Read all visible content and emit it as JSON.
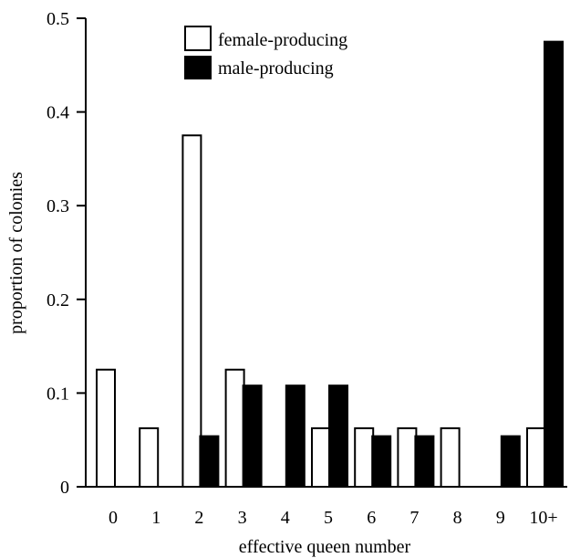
{
  "chart_data": {
    "type": "bar",
    "xlabel": "effective queen number",
    "ylabel": "proportion of colonies",
    "ylim": [
      0,
      0.5
    ],
    "yticks": [
      "0",
      "0.1",
      "0.2",
      "0.3",
      "0.4",
      "0.5"
    ],
    "categories": [
      "0",
      "1",
      "2",
      "3",
      "4",
      "5",
      "6",
      "7",
      "8",
      "9",
      "10+"
    ],
    "series": [
      {
        "name": "female-producing",
        "fill": "#ffffff",
        "stroke": "#000000",
        "values": [
          0.125,
          0.0625,
          0.375,
          0.125,
          0,
          0.0625,
          0.0625,
          0.0625,
          0.0625,
          0,
          0.0625
        ]
      },
      {
        "name": "male-producing",
        "fill": "#000000",
        "stroke": "#000000",
        "values": [
          0,
          0,
          0.054,
          0.108,
          0.108,
          0.108,
          0.054,
          0.054,
          0,
          0.054,
          0.475
        ]
      }
    ],
    "legend_position": "top-center",
    "grid": false
  }
}
